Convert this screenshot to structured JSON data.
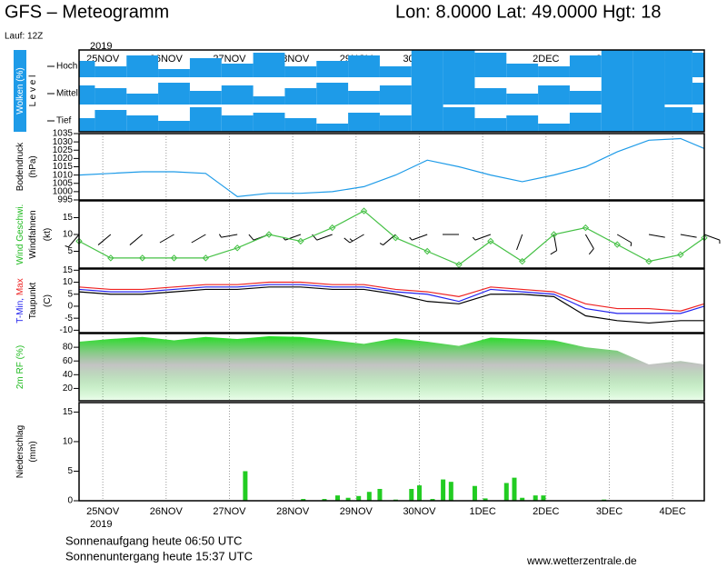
{
  "header": {
    "title": "GFS – Meteogramm",
    "location": "Lon: 8.0000 Lat: 49.0000 Hgt: 18",
    "run": "Lauf: 12Z"
  },
  "chart_data": {
    "type": "meteogram",
    "year": "2019",
    "xlim": [
      -9,
      228
    ],
    "xticks": [
      {
        "value": 0,
        "label": "25NOV"
      },
      {
        "value": 24,
        "label": "26NOV"
      },
      {
        "value": 48,
        "label": "27NOV"
      },
      {
        "value": 72,
        "label": "28NOV"
      },
      {
        "value": 96,
        "label": "29NOV"
      },
      {
        "value": 120,
        "label": "30NOV"
      },
      {
        "value": 144,
        "label": "1DEC"
      },
      {
        "value": 168,
        "label": "2DEC"
      },
      {
        "value": 192,
        "label": "3DEC"
      },
      {
        "value": 216,
        "label": "4DEC"
      }
    ],
    "x": [
      -9,
      3,
      15,
      27,
      39,
      51,
      63,
      75,
      87,
      99,
      111,
      123,
      135,
      147,
      159,
      171,
      183,
      195,
      207,
      219,
      228
    ],
    "panels": [
      {
        "type": "heatmap",
        "labels": [
          [
            {
              "text": "Wolken (%)",
              "color": "#ffffff"
            }
          ],
          [
            {
              "text": "L e v e l",
              "color": "#000000"
            }
          ]
        ],
        "background": "#1e9be8",
        "levels": [
          "Hoch",
          "Mittel",
          "Tief"
        ],
        "color": "#1e9be8",
        "values": [
          [
            60,
            40,
            80,
            30,
            70,
            50,
            90,
            40,
            60,
            80,
            40,
            100,
            100,
            90,
            50,
            40,
            80,
            100,
            100,
            100,
            90
          ],
          [
            70,
            60,
            40,
            80,
            50,
            70,
            30,
            60,
            80,
            50,
            70,
            100,
            100,
            60,
            40,
            70,
            50,
            100,
            100,
            100,
            80
          ],
          [
            50,
            80,
            60,
            40,
            90,
            60,
            70,
            50,
            30,
            70,
            60,
            100,
            90,
            50,
            60,
            30,
            70,
            100,
            100,
            90,
            70
          ]
        ]
      },
      {
        "type": "line",
        "labels": [
          [
            {
              "text": "Bodendruck",
              "color": "#000000"
            }
          ],
          [
            {
              "text": "(hPa)",
              "color": "#000000"
            }
          ]
        ],
        "ylim": [
          995,
          1035
        ],
        "yticks": [
          995,
          1000,
          1005,
          1010,
          1015,
          1020,
          1025,
          1030,
          1035
        ],
        "series": [
          {
            "color": "#1e9be8",
            "values": [
              1010,
              1011,
              1012,
              1012,
              1011,
              997,
              999,
              999,
              1000,
              1003,
              1010,
              1019,
              1015,
              1010,
              1006,
              1010,
              1015,
              1024,
              1031,
              1032,
              1026
            ]
          }
        ]
      },
      {
        "type": "line",
        "labels": [
          [
            {
              "text": "Wind Geschwi.",
              "color": "#22bb22"
            }
          ],
          [
            {
              "text": "Windfahnen",
              "color": "#000000"
            }
          ],
          [
            {
              "text": "(kt)",
              "color": "#000000"
            }
          ]
        ],
        "ylim": [
          0,
          20
        ],
        "yticks": [
          5,
          10,
          15
        ],
        "marker": "diamond",
        "series": [
          {
            "color": "#44c044",
            "values": [
              8,
              3,
              3,
              3,
              3,
              6,
              10,
              8,
              12,
              17,
              9,
              5,
              1,
              8,
              2,
              10,
              12,
              7,
              2,
              4,
              9
            ]
          }
        ],
        "directions": [
          220,
          230,
          230,
          240,
          240,
          260,
          250,
          250,
          250,
          240,
          230,
          250,
          270,
          250,
          200,
          170,
          150,
          120,
          100,
          100,
          110
        ]
      },
      {
        "type": "line",
        "labels": [
          [
            {
              "text": "T-Min,",
              "color": "#2222ee"
            },
            {
              "text": "Max",
              "color": "#ee2222"
            }
          ],
          [
            {
              "text": "Taupunkt",
              "color": "#000000"
            }
          ],
          [
            {
              "text": "(C)",
              "color": "#000000"
            }
          ]
        ],
        "ylim": [
          -11,
          15.5
        ],
        "yticks": [
          -10,
          -5,
          0,
          5,
          10,
          15
        ],
        "series": [
          {
            "color": "#ee2222",
            "values": [
              8,
              7,
              7,
              8,
              9,
              9,
              10,
              10,
              9,
              9,
              7,
              6,
              4,
              8,
              7,
              6,
              1,
              -1,
              -1,
              -2,
              1
            ]
          },
          {
            "color": "#2222ee",
            "values": [
              7,
              6,
              6,
              7,
              8,
              8,
              9,
              9,
              8,
              8,
              6,
              5,
              2,
              7,
              6,
              5,
              -1,
              -3,
              -3,
              -3,
              0
            ]
          },
          {
            "color": "#000000",
            "values": [
              6,
              5,
              5,
              6,
              7,
              7,
              8,
              8,
              7,
              7,
              5,
              2,
              1,
              5,
              5,
              4,
              -4,
              -6,
              -7,
              -6,
              -6
            ]
          }
        ]
      },
      {
        "type": "area",
        "labels": [
          [
            {
              "text": "2m RF (%)",
              "color": "#22bb22"
            }
          ]
        ],
        "ylim": [
          2,
          100
        ],
        "yticks": [
          20,
          40,
          60,
          80
        ],
        "series": [
          {
            "color": "#22dd22",
            "values": [
              88,
              92,
              95,
              90,
              95,
              92,
              96,
              95,
              90,
              85,
              93,
              88,
              82,
              94,
              92,
              90,
              80,
              75,
              55,
              60,
              55
            ]
          }
        ]
      },
      {
        "type": "bar",
        "labels": [
          [
            {
              "text": "Niederschlag",
              "color": "#000000"
            }
          ],
          [
            {
              "text": "(mm)",
              "color": "#000000"
            }
          ]
        ],
        "ylim": [
          0,
          16.6
        ],
        "yticks": [
          0,
          5,
          10,
          15
        ],
        "color": "#22cc22",
        "x": [
          54,
          76,
          84,
          89,
          93,
          97,
          101,
          105,
          111,
          117,
          120,
          125,
          129,
          132,
          141,
          145,
          153,
          156,
          159,
          164,
          167,
          190
        ],
        "values": [
          5,
          0.3,
          0.3,
          0.9,
          0.5,
          0.8,
          1.5,
          2,
          0.2,
          2,
          2.6,
          0.3,
          3.6,
          3.2,
          2.5,
          0.4,
          3,
          3.9,
          0.5,
          0.9,
          0.9,
          0.2
        ]
      }
    ]
  },
  "footer": {
    "sunrise": "Sonnenaufgang heute 06:50 UTC",
    "sunset": "Sonnenuntergang heute 15:37 UTC",
    "site": "www.wetterzentrale.de"
  }
}
